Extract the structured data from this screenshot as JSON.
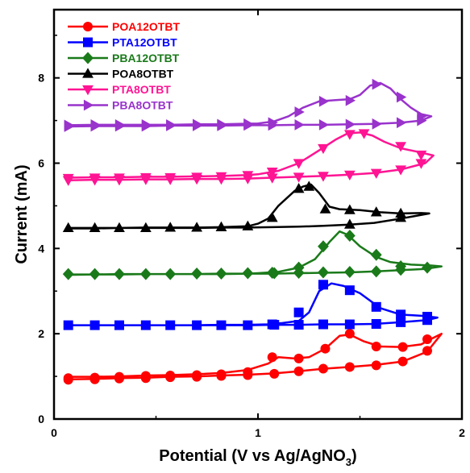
{
  "chart_data": {
    "type": "line",
    "xlabel": "Potential (V vs Ag/AgNO",
    "xlabel_sub": "3",
    "xlabel_close": ")",
    "ylabel": "Current (mA)",
    "xlim": [
      0,
      2
    ],
    "ylim": [
      0,
      9.6
    ],
    "xticks": [
      0,
      1,
      2
    ],
    "yticks": [
      0,
      2,
      4,
      6,
      8
    ],
    "legend_position": "top-left",
    "series": [
      {
        "name": "POA12OTBT",
        "color": "#ff0000",
        "marker": "circle",
        "x": [
          0.07,
          0.2,
          0.32,
          0.45,
          0.57,
          0.7,
          0.82,
          0.95,
          1.08,
          1.2,
          1.32,
          1.45,
          1.58,
          1.71,
          1.83,
          1.9,
          1.85,
          1.8,
          1.7,
          1.6,
          1.52,
          1.45,
          1.4,
          1.33,
          1.25,
          1.18,
          1.1,
          1.05,
          0.95,
          0.82,
          0.7,
          0.57,
          0.45,
          0.32,
          0.2,
          0.07
        ],
        "y": [
          0.93,
          0.94,
          0.96,
          0.97,
          0.99,
          1.0,
          1.02,
          1.04,
          1.07,
          1.12,
          1.18,
          1.22,
          1.27,
          1.35,
          1.58,
          2.0,
          1.88,
          1.75,
          1.69,
          1.7,
          1.82,
          1.98,
          1.95,
          1.65,
          1.45,
          1.42,
          1.45,
          1.3,
          1.15,
          1.08,
          1.05,
          1.03,
          1.02,
          1.0,
          0.99,
          0.99
        ],
        "markers": [
          [
            0.07,
            0.96
          ],
          [
            0.2,
            0.97
          ],
          [
            0.32,
            0.99
          ],
          [
            0.45,
            1.01
          ],
          [
            0.57,
            1.02
          ],
          [
            0.7,
            1.03
          ],
          [
            0.82,
            1.05
          ],
          [
            0.95,
            1.1
          ],
          [
            1.07,
            1.45
          ],
          [
            1.2,
            1.42
          ],
          [
            1.33,
            1.65
          ],
          [
            1.45,
            2.0
          ],
          [
            1.58,
            1.7
          ],
          [
            1.71,
            1.69
          ],
          [
            1.83,
            1.87
          ],
          [
            0.07,
            0.92
          ],
          [
            0.2,
            0.93
          ],
          [
            0.32,
            0.95
          ],
          [
            0.45,
            0.96
          ],
          [
            0.57,
            0.98
          ],
          [
            0.7,
            0.99
          ],
          [
            0.82,
            1.01
          ],
          [
            0.95,
            1.03
          ],
          [
            1.08,
            1.06
          ],
          [
            1.2,
            1.12
          ],
          [
            1.32,
            1.18
          ],
          [
            1.45,
            1.22
          ],
          [
            1.58,
            1.26
          ],
          [
            1.71,
            1.35
          ],
          [
            1.83,
            1.6
          ]
        ]
      },
      {
        "name": "PTA12OTBT",
        "color": "#0000ff",
        "marker": "square",
        "x": [
          0.07,
          0.2,
          0.32,
          0.45,
          0.57,
          0.7,
          0.82,
          0.95,
          1.07,
          1.2,
          1.32,
          1.45,
          1.57,
          1.7,
          1.83,
          1.88,
          1.8,
          1.7,
          1.6,
          1.5,
          1.42,
          1.36,
          1.3,
          1.25,
          1.2,
          1.12,
          1.05,
          0.95,
          0.82,
          0.7,
          0.57,
          0.45,
          0.32,
          0.2,
          0.07
        ],
        "y": [
          2.2,
          2.2,
          2.2,
          2.2,
          2.2,
          2.2,
          2.2,
          2.2,
          2.21,
          2.21,
          2.22,
          2.22,
          2.23,
          2.27,
          2.32,
          2.38,
          2.42,
          2.45,
          2.6,
          2.95,
          3.12,
          3.18,
          3.0,
          2.5,
          2.3,
          2.25,
          2.22,
          2.21,
          2.21,
          2.2,
          2.2,
          2.2,
          2.2,
          2.2,
          2.2
        ],
        "markers": [
          [
            0.07,
            2.2
          ],
          [
            0.2,
            2.2
          ],
          [
            0.32,
            2.2
          ],
          [
            0.45,
            2.2
          ],
          [
            0.57,
            2.2
          ],
          [
            0.7,
            2.2
          ],
          [
            0.82,
            2.2
          ],
          [
            0.95,
            2.2
          ],
          [
            1.07,
            2.22
          ],
          [
            1.2,
            2.5
          ],
          [
            1.32,
            3.15
          ],
          [
            1.45,
            3.02
          ],
          [
            1.58,
            2.63
          ],
          [
            1.7,
            2.45
          ],
          [
            1.83,
            2.4
          ],
          [
            1.08,
            2.21
          ],
          [
            1.2,
            2.21
          ],
          [
            1.32,
            2.22
          ],
          [
            1.45,
            2.22
          ],
          [
            1.58,
            2.23
          ],
          [
            1.7,
            2.27
          ],
          [
            1.83,
            2.32
          ]
        ]
      },
      {
        "name": "PBA12OTBT",
        "color": "#1a7a1a",
        "marker": "diamond",
        "x": [
          0.07,
          0.2,
          0.32,
          0.45,
          0.57,
          0.7,
          0.82,
          0.95,
          1.07,
          1.2,
          1.32,
          1.45,
          1.57,
          1.7,
          1.82,
          1.9,
          1.85,
          1.75,
          1.65,
          1.58,
          1.5,
          1.44,
          1.4,
          1.35,
          1.28,
          1.2,
          1.1,
          1.0,
          0.95,
          0.82,
          0.7,
          0.57,
          0.45,
          0.32,
          0.2,
          0.07
        ],
        "y": [
          3.38,
          3.39,
          3.39,
          3.4,
          3.4,
          3.4,
          3.4,
          3.41,
          3.41,
          3.42,
          3.43,
          3.44,
          3.46,
          3.49,
          3.52,
          3.58,
          3.6,
          3.62,
          3.68,
          3.8,
          4.05,
          4.32,
          4.4,
          4.15,
          3.75,
          3.55,
          3.45,
          3.42,
          3.41,
          3.41,
          3.4,
          3.4,
          3.4,
          3.4,
          3.39,
          3.39
        ],
        "markers": [
          [
            0.07,
            3.4
          ],
          [
            0.2,
            3.4
          ],
          [
            0.32,
            3.4
          ],
          [
            0.45,
            3.4
          ],
          [
            0.57,
            3.4
          ],
          [
            0.7,
            3.41
          ],
          [
            0.82,
            3.41
          ],
          [
            0.95,
            3.42
          ],
          [
            1.07,
            3.43
          ],
          [
            1.2,
            3.55
          ],
          [
            1.32,
            4.05
          ],
          [
            1.45,
            4.3
          ],
          [
            1.58,
            3.85
          ],
          [
            1.7,
            3.58
          ],
          [
            1.83,
            3.55
          ],
          [
            1.08,
            3.42
          ],
          [
            1.2,
            3.43
          ],
          [
            1.32,
            3.44
          ],
          [
            1.45,
            3.45
          ],
          [
            1.58,
            3.46
          ],
          [
            1.7,
            3.5
          ]
        ]
      },
      {
        "name": "POA8OTBT",
        "color": "#000000",
        "marker": "triangle-up",
        "x": [
          0.07,
          0.2,
          0.32,
          0.45,
          0.57,
          0.7,
          0.82,
          0.95,
          1.07,
          1.2,
          1.32,
          1.45,
          1.57,
          1.7,
          1.84,
          1.8,
          1.7,
          1.6,
          1.5,
          1.4,
          1.35,
          1.3,
          1.26,
          1.22,
          1.18,
          1.1,
          1.05,
          1.0,
          0.95,
          0.82,
          0.7,
          0.57,
          0.45,
          0.32,
          0.2,
          0.07
        ],
        "y": [
          4.47,
          4.47,
          4.48,
          4.48,
          4.48,
          4.48,
          4.49,
          4.49,
          4.5,
          4.51,
          4.53,
          4.56,
          4.6,
          4.7,
          4.82,
          4.83,
          4.82,
          4.85,
          4.9,
          4.92,
          4.98,
          5.3,
          5.5,
          5.45,
          5.35,
          5.0,
          4.7,
          4.58,
          4.52,
          4.5,
          4.49,
          4.49,
          4.49,
          4.48,
          4.48,
          4.48
        ],
        "markers": [
          [
            0.07,
            4.48
          ],
          [
            0.2,
            4.48
          ],
          [
            0.32,
            4.48
          ],
          [
            0.45,
            4.48
          ],
          [
            0.57,
            4.49
          ],
          [
            0.7,
            4.49
          ],
          [
            0.82,
            4.5
          ],
          [
            0.95,
            4.52
          ],
          [
            1.07,
            4.72
          ],
          [
            1.2,
            5.4
          ],
          [
            1.25,
            5.45
          ],
          [
            1.33,
            4.92
          ],
          [
            1.45,
            4.9
          ],
          [
            1.58,
            4.85
          ],
          [
            1.7,
            4.82
          ],
          [
            1.45,
            4.56
          ],
          [
            1.7,
            4.72
          ]
        ]
      },
      {
        "name": "PTA8OTBT",
        "color": "#ff1493",
        "marker": "triangle-down",
        "x": [
          0.07,
          0.2,
          0.32,
          0.45,
          0.57,
          0.7,
          0.82,
          0.95,
          1.07,
          1.2,
          1.32,
          1.45,
          1.57,
          1.7,
          1.82,
          1.86,
          1.8,
          1.7,
          1.62,
          1.56,
          1.5,
          1.44,
          1.38,
          1.3,
          1.2,
          1.1,
          1.0,
          0.95,
          0.82,
          0.7,
          0.57,
          0.45,
          0.32,
          0.2,
          0.07
        ],
        "y": [
          5.6,
          5.61,
          5.61,
          5.62,
          5.62,
          5.63,
          5.63,
          5.64,
          5.66,
          5.68,
          5.7,
          5.73,
          5.77,
          5.85,
          6.0,
          6.18,
          6.25,
          6.35,
          6.5,
          6.65,
          6.72,
          6.7,
          6.55,
          6.3,
          6.0,
          5.82,
          5.74,
          5.72,
          5.7,
          5.69,
          5.68,
          5.68,
          5.67,
          5.67,
          5.66
        ],
        "markers": [
          [
            0.07,
            5.65
          ],
          [
            0.2,
            5.66
          ],
          [
            0.32,
            5.66
          ],
          [
            0.45,
            5.67
          ],
          [
            0.57,
            5.67
          ],
          [
            0.7,
            5.68
          ],
          [
            0.82,
            5.69
          ],
          [
            0.95,
            5.72
          ],
          [
            1.07,
            5.8
          ],
          [
            1.2,
            6.0
          ],
          [
            1.32,
            6.35
          ],
          [
            1.45,
            6.68
          ],
          [
            1.52,
            6.7
          ],
          [
            1.7,
            6.4
          ],
          [
            1.8,
            6.2
          ],
          [
            0.07,
            5.6
          ],
          [
            0.2,
            5.61
          ],
          [
            0.32,
            5.61
          ],
          [
            0.45,
            5.62
          ],
          [
            0.57,
            5.62
          ],
          [
            0.7,
            5.63
          ],
          [
            0.82,
            5.63
          ],
          [
            0.95,
            5.64
          ],
          [
            1.07,
            5.66
          ],
          [
            1.2,
            5.68
          ],
          [
            1.32,
            5.7
          ],
          [
            1.45,
            5.73
          ],
          [
            1.58,
            5.77
          ],
          [
            1.7,
            5.85
          ],
          [
            1.8,
            6.0
          ]
        ]
      },
      {
        "name": "PBA8OTBT",
        "color": "#9933cc",
        "marker": "triangle-right",
        "x": [
          0.07,
          0.2,
          0.32,
          0.45,
          0.57,
          0.7,
          0.82,
          0.95,
          1.07,
          1.2,
          1.32,
          1.45,
          1.57,
          1.7,
          1.8,
          1.85,
          1.8,
          1.75,
          1.7,
          1.65,
          1.6,
          1.55,
          1.5,
          1.45,
          1.38,
          1.3,
          1.22,
          1.15,
          1.08,
          1.0,
          0.9,
          0.82,
          0.7,
          0.57,
          0.45,
          0.32,
          0.2,
          0.07
        ],
        "y": [
          6.86,
          6.87,
          6.87,
          6.87,
          6.88,
          6.88,
          6.88,
          6.89,
          6.89,
          6.9,
          6.9,
          6.91,
          6.92,
          6.95,
          7.0,
          7.1,
          7.15,
          7.3,
          7.5,
          7.75,
          7.88,
          7.82,
          7.6,
          7.5,
          7.48,
          7.45,
          7.3,
          7.1,
          6.98,
          6.93,
          6.92,
          6.91,
          6.91,
          6.9,
          6.9,
          6.9,
          6.9,
          6.89
        ],
        "markers": [
          [
            0.07,
            6.89
          ],
          [
            0.2,
            6.9
          ],
          [
            0.32,
            6.9
          ],
          [
            0.45,
            6.9
          ],
          [
            0.57,
            6.9
          ],
          [
            0.7,
            6.91
          ],
          [
            0.82,
            6.91
          ],
          [
            0.95,
            6.92
          ],
          [
            1.07,
            6.95
          ],
          [
            1.2,
            7.2
          ],
          [
            1.32,
            7.45
          ],
          [
            1.45,
            7.47
          ],
          [
            1.58,
            7.85
          ],
          [
            1.7,
            7.55
          ],
          [
            1.8,
            7.1
          ],
          [
            0.07,
            6.86
          ],
          [
            0.2,
            6.87
          ],
          [
            0.32,
            6.87
          ],
          [
            0.45,
            6.87
          ],
          [
            0.57,
            6.88
          ],
          [
            0.7,
            6.88
          ],
          [
            0.82,
            6.88
          ],
          [
            0.95,
            6.89
          ],
          [
            1.07,
            6.89
          ],
          [
            1.2,
            6.9
          ],
          [
            1.32,
            6.9
          ],
          [
            1.45,
            6.91
          ],
          [
            1.58,
            6.92
          ],
          [
            1.7,
            6.95
          ],
          [
            1.8,
            7.0
          ]
        ]
      }
    ]
  }
}
